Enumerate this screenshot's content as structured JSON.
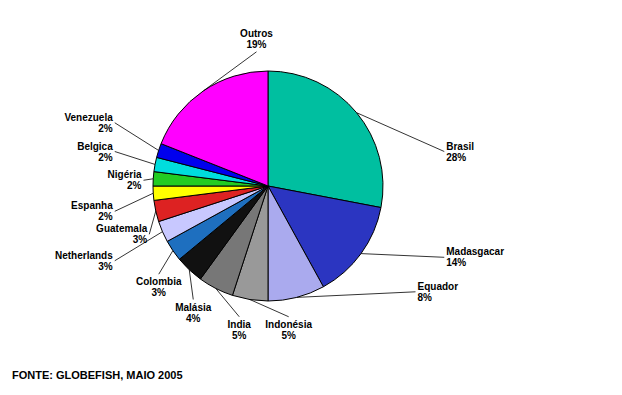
{
  "chart_data": {
    "type": "pie",
    "categories": [
      "Brasil",
      "Madasgacar",
      "Equador",
      "Indonésia",
      "India",
      "Malásia",
      "Colombia",
      "Netherlands",
      "Guatemala",
      "Espanha",
      "Nigéria",
      "Belgica",
      "Venezuela",
      "Outros"
    ],
    "values": [
      28,
      14,
      8,
      5,
      5,
      4,
      3,
      3,
      3,
      2,
      2,
      2,
      2,
      19
    ],
    "value_labels": [
      "28%",
      "14%",
      "8%",
      "5%",
      "5%",
      "4%",
      "3%",
      "3%",
      "3%",
      "2%",
      "2%",
      "2%",
      "2%",
      "19%"
    ],
    "colors": [
      "#00BFA0",
      "#2B35C1",
      "#AAAAEE",
      "#999999",
      "#777777",
      "#111111",
      "#1E6FBF",
      "#C8C8FF",
      "#DD2222",
      "#FFFF00",
      "#22CC22",
      "#00DDDD",
      "#0000EE",
      "#FF00FF"
    ],
    "data_labels": true,
    "annotations": [
      "FONTE: GLOBEFISH, MAIO 2005"
    ]
  }
}
